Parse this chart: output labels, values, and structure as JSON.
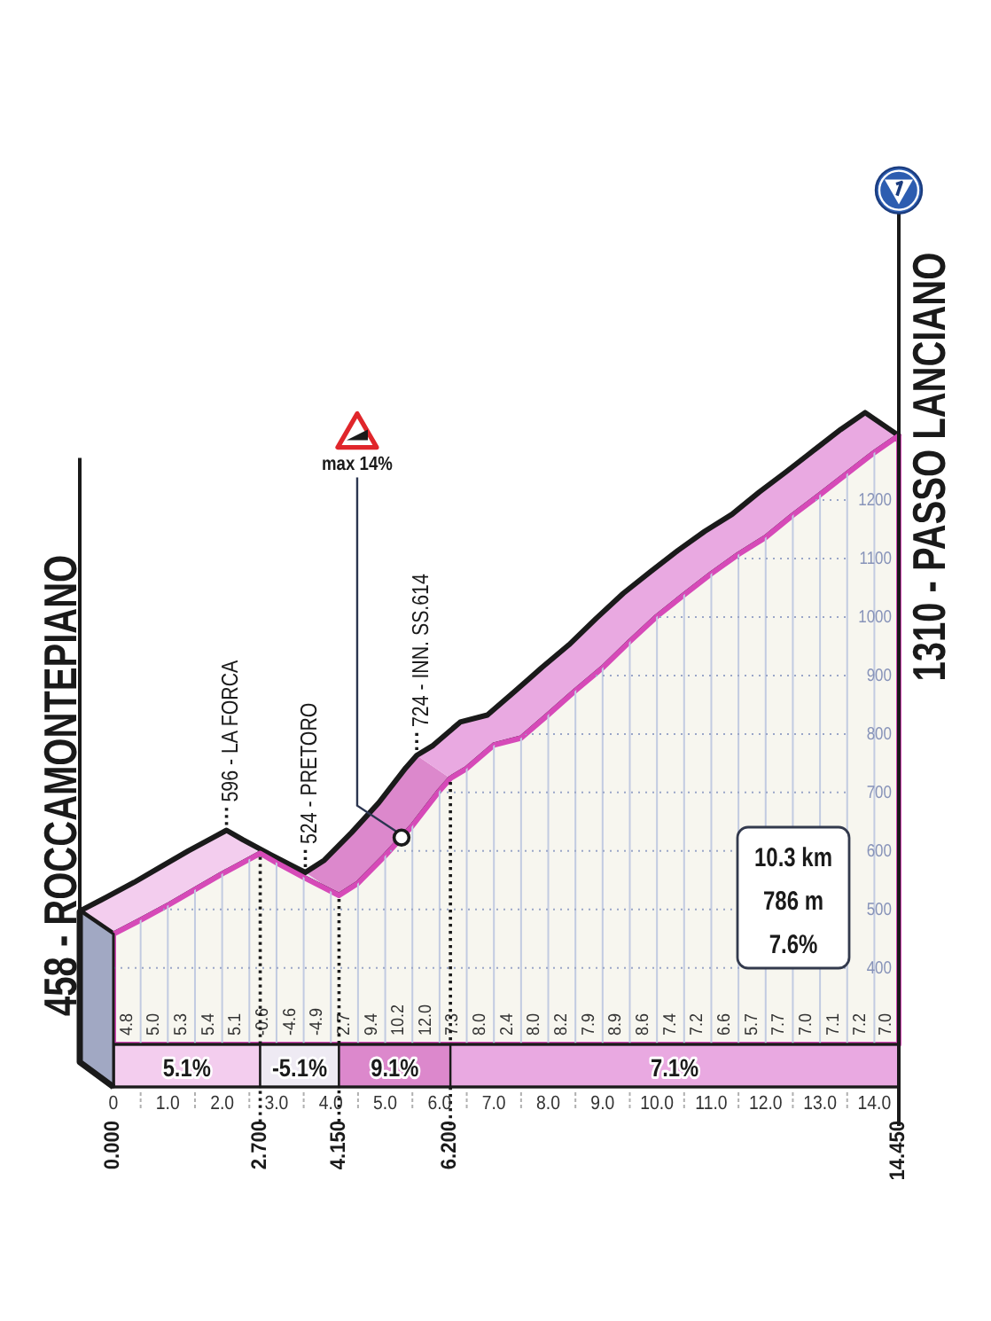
{
  "chart_data": {
    "type": "area",
    "x": [
      0,
      0.5,
      1,
      1.5,
      2,
      2.5,
      2.7,
      3,
      3.5,
      4,
      4.15,
      4.5,
      5,
      5.5,
      6,
      6.2,
      6.5,
      7,
      7.5,
      8,
      8.5,
      9,
      9.5,
      10,
      10.5,
      11,
      11.5,
      12,
      12.5,
      13,
      13.5,
      14,
      14.45
    ],
    "series": [
      {
        "color": "#d64ab8",
        "values": [
          458,
          482,
          507,
          534,
          561,
          586,
          596,
          580,
          555,
          531,
          524,
          545,
          592,
          643,
          703,
          724,
          741,
          781,
          793,
          833,
          874,
          913,
          958,
          1001,
          1038,
          1074,
          1107,
          1136,
          1174,
          1209,
          1245,
          1281,
          1310
        ]
      }
    ],
    "xlim": [
      0,
      14.45
    ],
    "xticks": [
      0,
      {
        "value": 0.5,
        "label": null
      },
      {
        "value": 1,
        "label": "1.0"
      },
      {
        "value": 1.5,
        "label": null
      },
      {
        "value": 2,
        "label": "2.0"
      },
      {
        "value": 2.5,
        "label": null
      },
      {
        "value": 3,
        "label": "3.0"
      },
      {
        "value": 3.5,
        "label": null
      },
      {
        "value": 4,
        "label": "4.0"
      },
      {
        "value": 4.5,
        "label": null
      },
      {
        "value": 5,
        "label": "5.0"
      },
      {
        "value": 5.5,
        "label": null
      },
      {
        "value": 6,
        "label": "6.0"
      },
      {
        "value": 6.5,
        "label": null
      },
      {
        "value": 7,
        "label": "7.0"
      },
      {
        "value": 7.5,
        "label": null
      },
      {
        "value": 8,
        "label": "8.0"
      },
      {
        "value": 8.5,
        "label": null
      },
      {
        "value": 9,
        "label": "9.0"
      },
      {
        "value": 9.5,
        "label": null
      },
      {
        "value": 10,
        "label": "10.0"
      },
      {
        "value": 10.5,
        "label": null
      },
      {
        "value": 11,
        "label": "11.0"
      },
      {
        "value": 11.5,
        "label": null
      },
      {
        "value": 12,
        "label": "12.0"
      },
      {
        "value": 12.5,
        "label": null
      },
      {
        "value": 13,
        "label": "13.0"
      },
      {
        "value": 13.5,
        "label": null
      },
      {
        "value": 14,
        "label": "14.0"
      }
    ],
    "x2lim": [
      0,
      14.45
    ],
    "x2ticks": [
      {
        "value": 0,
        "label": "0.000"
      },
      {
        "value": 2.7,
        "label": "2.700"
      },
      {
        "value": 4.15,
        "label": "4.150"
      },
      {
        "value": 6.2,
        "label": "6.200"
      },
      {
        "value": 14.45,
        "label": "14.450"
      }
    ],
    "ylim": [
      130,
      1690
    ],
    "yticks": [
      400,
      500,
      600,
      700,
      800,
      900,
      1000,
      1100,
      1200
    ],
    "grid": true,
    "bands": [
      {
        "axis": "x",
        "from": 0,
        "to": 2.7,
        "label": "5.1%",
        "color": "#f3cdee"
      },
      {
        "axis": "x",
        "from": 2.7,
        "to": 4.15,
        "label": "-5.1%",
        "color": "#eeeaf3"
      },
      {
        "axis": "x",
        "from": 4.15,
        "to": 6.2,
        "label": "9.1%",
        "color": "#dc88cc"
      },
      {
        "axis": "x",
        "from": 6.2,
        "to": 14.45,
        "label": "7.1%",
        "color": "#e9a9e1"
      }
    ],
    "ref_lines": [
      {
        "axis": "x",
        "value": 2.7,
        "label": "596 - LA FORCA",
        "line_style": "dotted"
      },
      {
        "axis": "x",
        "value": 4.15,
        "label": "524 - PRETORO",
        "line_style": "dotted"
      },
      {
        "axis": "x",
        "value": 6.2,
        "label": "724 - INN. SS.614",
        "line_style": "dotted"
      }
    ],
    "annotations": [
      {
        "text": "458 - ROCCAMONTEPIANO",
        "x": 0,
        "y": 458
      },
      {
        "text": "1310 - PASSO LANCIANO",
        "x": 14.45,
        "y": 1310
      },
      {
        "text": "max 14%",
        "x": 5.3,
        "y": 623
      },
      "10.3 km\n786 m\n7.6%",
      "4.8",
      "5.0",
      "5.3",
      "5.4",
      "5.1",
      "-0.6",
      "-4.6",
      "-4.9",
      "2.7",
      "9.4",
      "10.2",
      "12.0",
      "7.3",
      "8.0",
      "2.4",
      "8.0",
      "8.2",
      "7.9",
      "8.9",
      "8.6",
      "7.4",
      "7.2",
      "6.6",
      "5.7",
      "7.7",
      "7.0",
      "7.1",
      "7.2",
      "7.0"
    ]
  }
}
